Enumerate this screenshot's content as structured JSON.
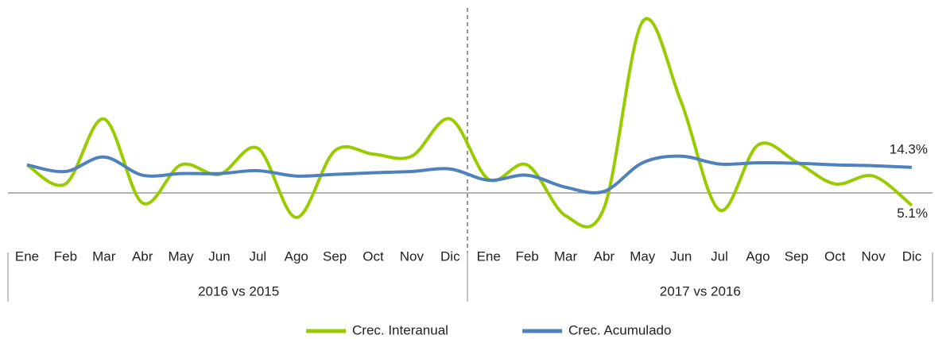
{
  "chart_data": {
    "type": "line",
    "categories": [
      "Ene",
      "Feb",
      "Mar",
      "Abr",
      "May",
      "Jun",
      "Jul",
      "Ago",
      "Sep",
      "Oct",
      "Nov",
      "Dic",
      "Ene",
      "Feb",
      "Mar",
      "Abr",
      "May",
      "Jun",
      "Jul",
      "Ago",
      "Sep",
      "Oct",
      "Nov",
      "Dic"
    ],
    "groups": [
      "2016 vs 2015",
      "2017 vs 2016"
    ],
    "series": [
      {
        "name": "Crec. Interanual",
        "color": "#99cc00",
        "values": [
          14.9,
          10.3,
          26.0,
          5.7,
          14.9,
          12.6,
          18.9,
          2.2,
          18.3,
          17.5,
          17.0,
          26.0,
          11.4,
          14.9,
          2.6,
          4.5,
          49.5,
          30.2,
          4.0,
          19.7,
          15.6,
          10.3,
          12.2,
          5.1
        ],
        "value_labels": [
          null,
          null,
          null,
          null,
          null,
          null,
          null,
          null,
          null,
          null,
          null,
          null,
          null,
          null,
          null,
          null,
          null,
          null,
          null,
          null,
          null,
          null,
          null,
          "5.1%"
        ]
      },
      {
        "name": "Crec. Acumulado",
        "color": "#4f81bd",
        "values": [
          14.9,
          13.3,
          16.8,
          12.4,
          12.8,
          12.8,
          13.5,
          12.2,
          12.6,
          13.0,
          13.3,
          13.9,
          11.2,
          12.4,
          9.5,
          8.5,
          15.4,
          17.0,
          15.1,
          15.4,
          15.3,
          14.9,
          14.7,
          14.3
        ],
        "value_labels": [
          null,
          null,
          null,
          null,
          null,
          null,
          null,
          null,
          null,
          null,
          null,
          null,
          null,
          null,
          null,
          null,
          null,
          null,
          null,
          null,
          null,
          null,
          null,
          "14.3%"
        ]
      }
    ],
    "ylim": [
      -3,
      53
    ]
  }
}
